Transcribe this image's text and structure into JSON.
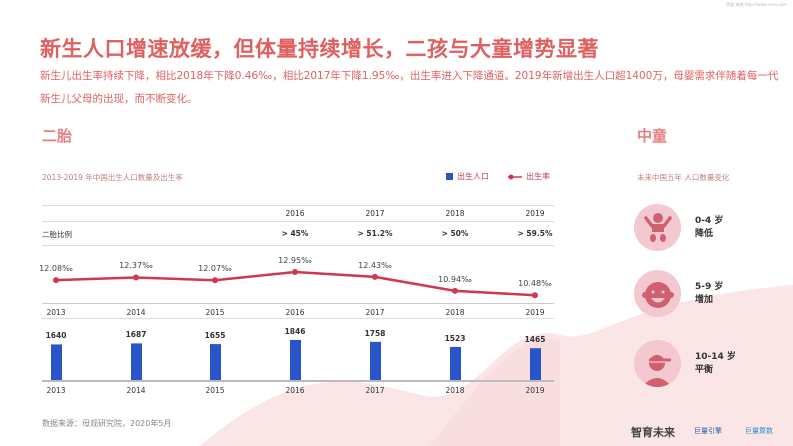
{
  "watermark": "明鉴 来源:http://www.xxxx.com",
  "header": {
    "title": "新生人口增速放缓，但体量持续增长，二孩与大童增势显著",
    "line1": "新生儿出生率持续下降，相比2018年下降0.46‰，相比2017年下降1.95‰，出生率进入下降通道。2019年新增出生人口超1400万，母婴需求伴随着每一代",
    "line2": "新生儿父母的出现，而不断变化。"
  },
  "left": {
    "section": "二胎",
    "chart_title": "2013-2019 年中国出生人口数量及出生率",
    "legend": {
      "bar": "出生人口",
      "line": "出生率"
    },
    "table": {
      "years": [
        "2016",
        "2017",
        "2018",
        "2019"
      ],
      "row_label": "二胎比例",
      "values": [
        "> 45%",
        "> 51.2%",
        "> 50%",
        "> 59.5%"
      ]
    },
    "source": "数据来源：母观研究院，2020年5月"
  },
  "chart_data": {
    "type": "bar+line",
    "categories": [
      "2013",
      "2014",
      "2015",
      "2016",
      "2017",
      "2018",
      "2019"
    ],
    "series": [
      {
        "name": "出生人口",
        "type": "bar",
        "values": [
          1640,
          1687,
          1655,
          1846,
          1758,
          1523,
          1465
        ],
        "labels": [
          "1640",
          "1687",
          "1655",
          "1846",
          "1758",
          "1523",
          "1465"
        ],
        "color": "#2a55c8"
      },
      {
        "name": "出生率",
        "type": "line",
        "values": [
          12.08,
          12.37,
          12.07,
          12.95,
          12.43,
          10.94,
          10.48
        ],
        "labels": [
          "12.08‰",
          "12.37‰",
          "12.07‰",
          "12.95‰",
          "12.43‰",
          "10.94‰",
          "10.48‰"
        ],
        "color": "#d0384f"
      }
    ]
  },
  "right": {
    "section": "中童",
    "subtitle": "未来中国五年 人口数量变化",
    "items": [
      {
        "age": "0-4 岁",
        "change": "降低",
        "icon": "baby-icon"
      },
      {
        "age": "5-9 岁",
        "change": "增加",
        "icon": "child-face-icon"
      },
      {
        "age": "10-14 岁",
        "change": "平衡",
        "icon": "boy-cap-icon"
      }
    ]
  },
  "footer": {
    "brand": "智育未来",
    "logo1": "巨量引擎",
    "logo2": "巨量算数"
  },
  "colors": {
    "accent": "#e06060",
    "bar": "#2a55c8",
    "line": "#d0384f",
    "wave": "#fbe3e4"
  }
}
